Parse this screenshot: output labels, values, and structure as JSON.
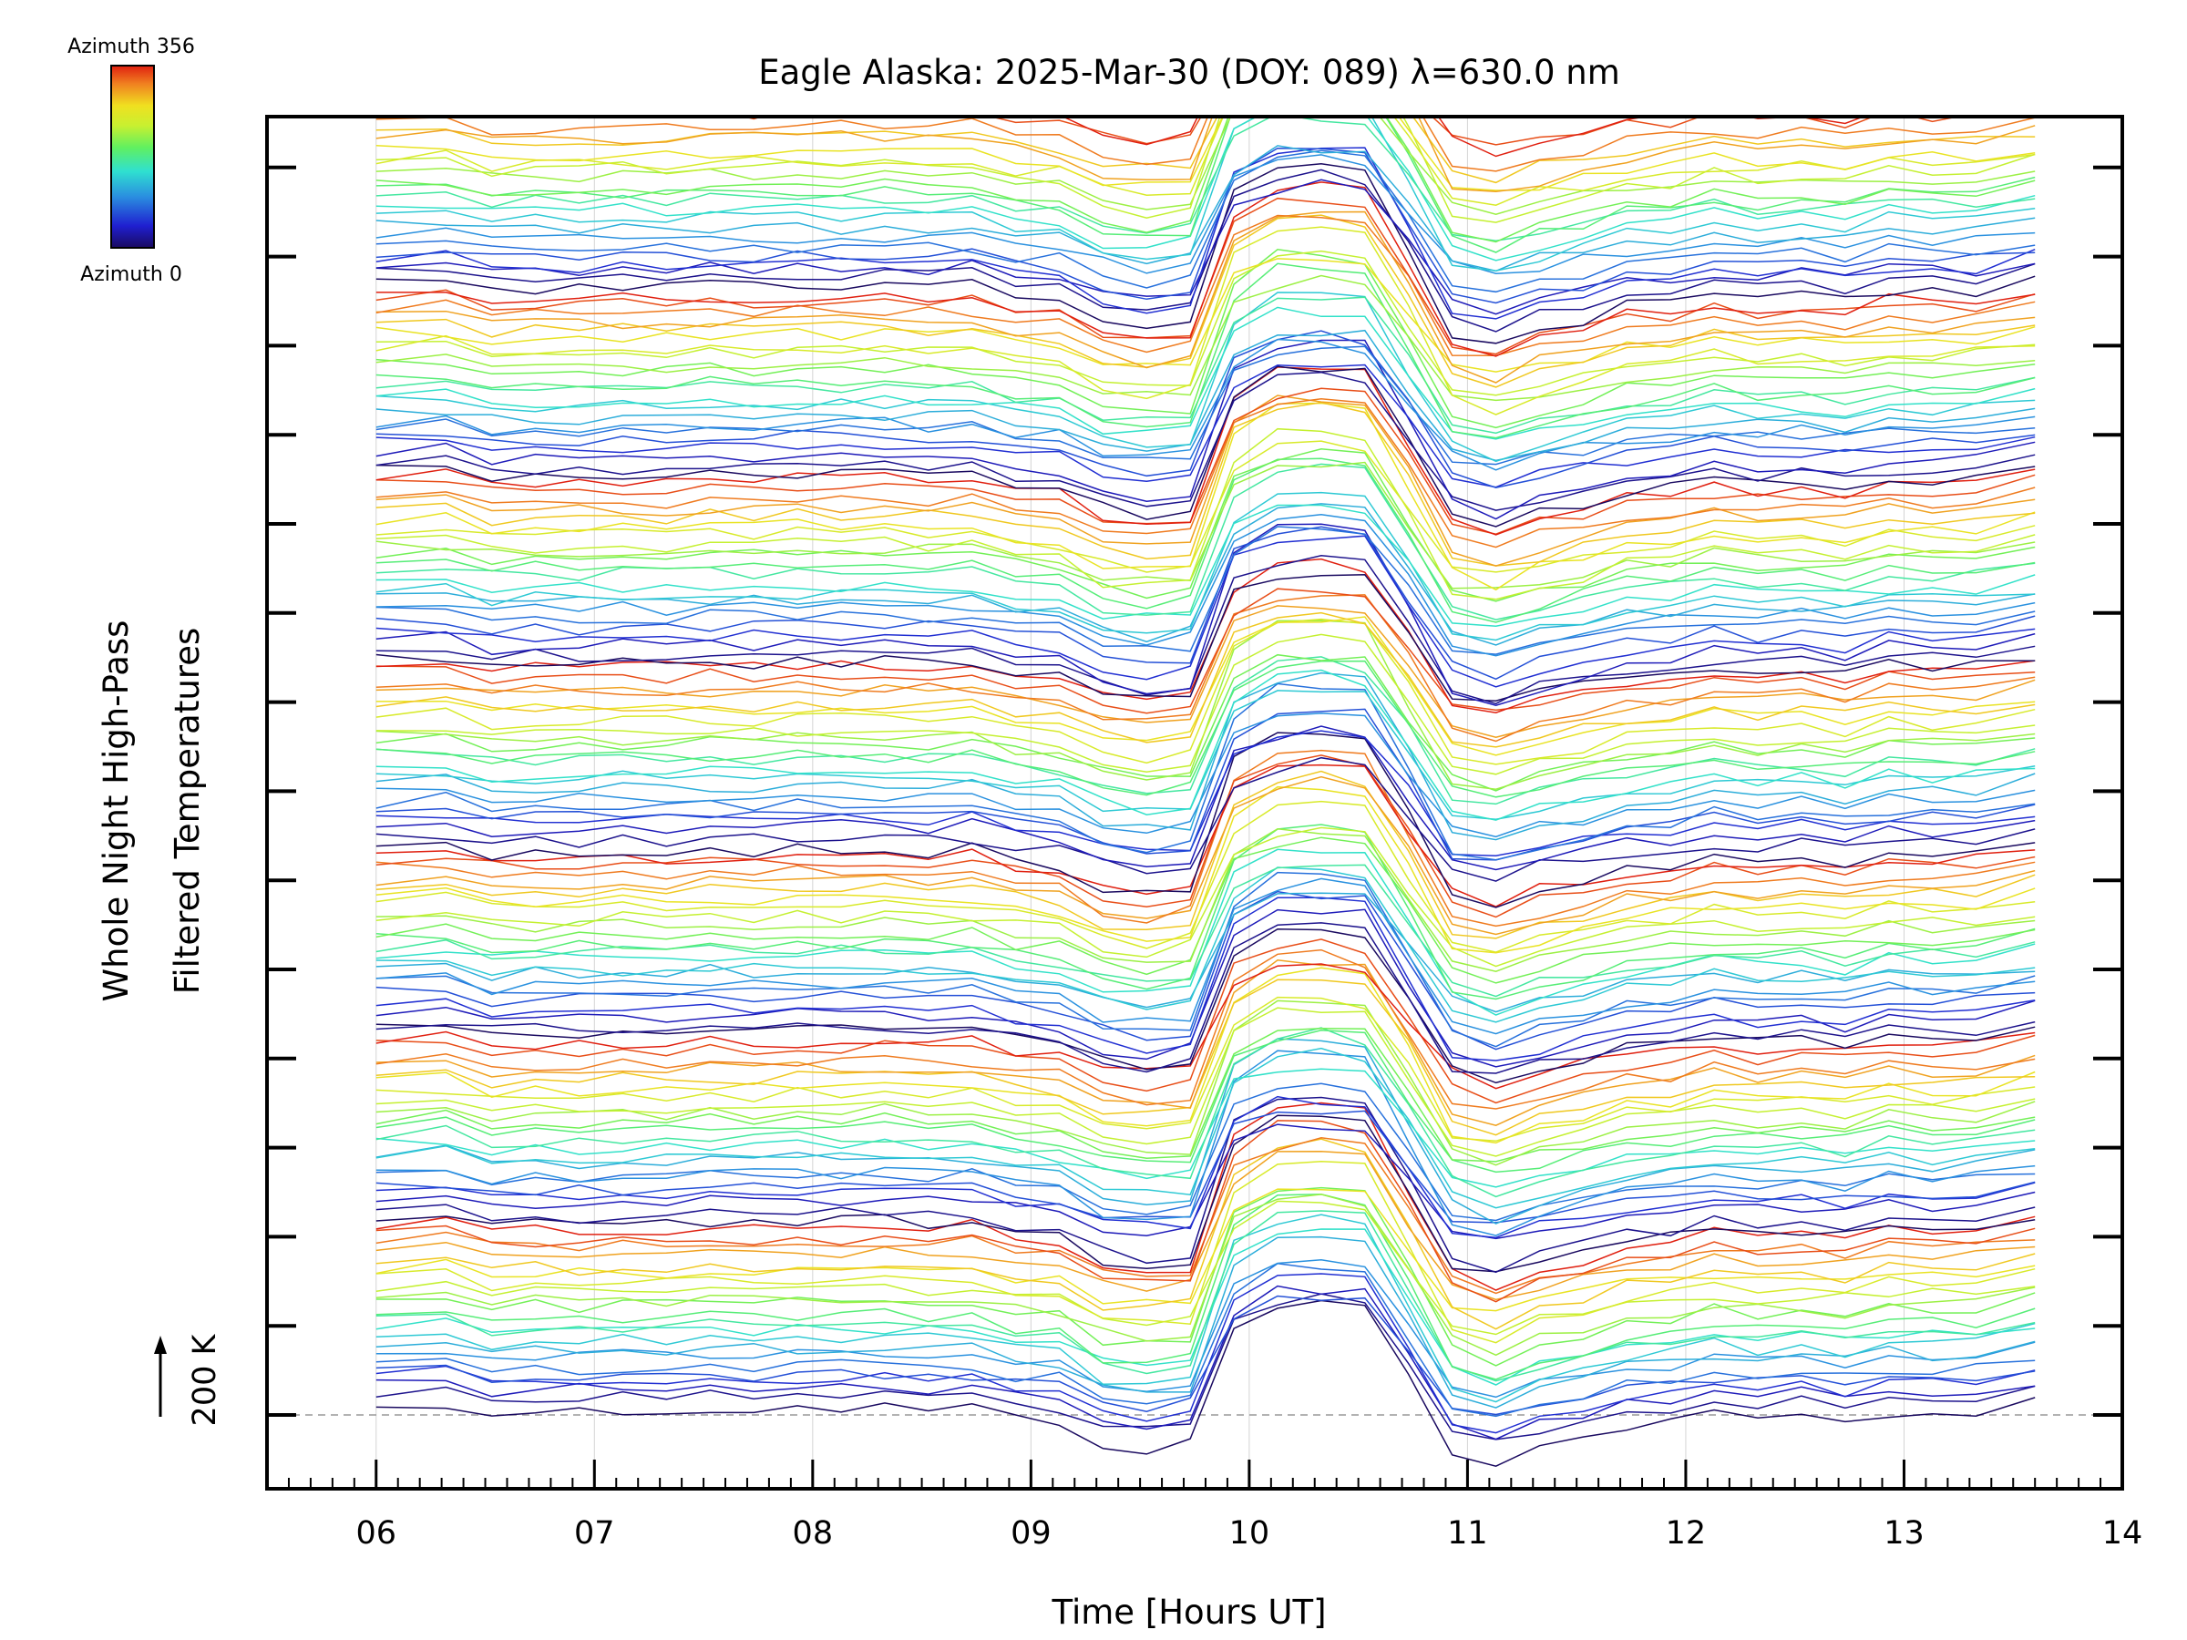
{
  "chart_data": {
    "type": "line",
    "title": "Eagle Alaska: 2025-Mar-30 (DOY: 089) λ=630.0 nm",
    "xlabel": "Time [Hours UT]",
    "ylabel_line1": "Whole Night High-Pass",
    "ylabel_line2": "Filtered Temperatures",
    "scale_label": "200 K",
    "xlim": [
      5.5,
      14
    ],
    "x_ticks": [
      6,
      7,
      8,
      9,
      10,
      11,
      12,
      13,
      14
    ],
    "x_tick_labels": [
      "06",
      "07",
      "08",
      "09",
      "10",
      "11",
      "12",
      "13",
      "14"
    ],
    "colorbar": {
      "top_label": "Azimuth 356",
      "bottom_label": "Azimuth 0",
      "colors": [
        "#1a0a60",
        "#1f1fd0",
        "#2a8ee0",
        "#2fe0d0",
        "#60f060",
        "#c8f030",
        "#f0e020",
        "#f08020",
        "#e02010"
      ]
    },
    "time_points": [
      6.0,
      6.32,
      6.53,
      6.73,
      6.93,
      7.13,
      7.33,
      7.53,
      7.73,
      7.93,
      8.13,
      8.33,
      8.53,
      8.73,
      8.93,
      9.13,
      9.33,
      9.53,
      9.73,
      9.93,
      10.13,
      10.33,
      10.53,
      10.73,
      10.93,
      11.13,
      11.33,
      11.53,
      11.73,
      11.93,
      12.13,
      12.33,
      12.53,
      12.73,
      12.93,
      13.13,
      13.33,
      13.6
    ],
    "event_profile": [
      0.0,
      0.12,
      -0.28,
      -0.18,
      -0.22,
      -0.15,
      -0.2,
      -0.1,
      -0.14,
      -0.08,
      -0.1,
      -0.05,
      -0.15,
      -0.06,
      -0.45,
      -0.55,
      -1.3,
      -1.5,
      -1.3,
      2.6,
      3.4,
      3.5,
      3.3,
      1.0,
      -1.5,
      -1.9,
      -1.4,
      -1.1,
      -0.7,
      -0.6,
      -0.3,
      -0.5,
      -0.35,
      -0.55,
      -0.2,
      -0.3,
      -0.25,
      0.15
    ],
    "series": [
      {
        "group": 1,
        "offset": 0.0,
        "azimuth_first": 0,
        "azimuth_last": 356
      },
      {
        "group": 2,
        "offset": 1.0,
        "azimuth_first": 0,
        "azimuth_last": 356
      },
      {
        "group": 3,
        "offset": 2.0,
        "azimuth_first": 0,
        "azimuth_last": 356
      },
      {
        "group": 4,
        "offset": 3.0,
        "azimuth_first": 0,
        "azimuth_last": 356
      },
      {
        "group": 5,
        "offset": 4.0,
        "azimuth_first": 0,
        "azimuth_last": 356
      },
      {
        "group": 6,
        "offset": 5.0,
        "azimuth_first": 0,
        "azimuth_last": 356
      },
      {
        "group": 7,
        "offset": 6.0,
        "azimuth_first": 0,
        "azimuth_last": 356
      }
    ],
    "lines_per_group": 22,
    "baseline_value_k": 200
  }
}
